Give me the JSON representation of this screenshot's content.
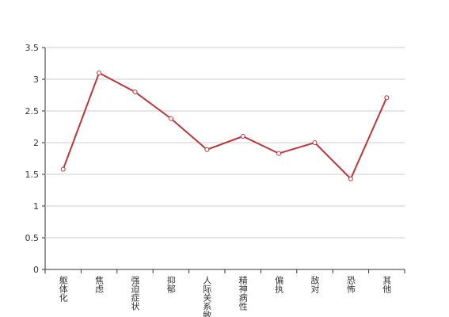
{
  "chart_data": {
    "type": "line",
    "categories": [
      "躯体化",
      "焦虑",
      "强迫症状",
      "抑郁",
      "人际关系敏感",
      "精神病性",
      "偏执",
      "敌对",
      "恐怖",
      "其他"
    ],
    "values": [
      1.58,
      3.1,
      2.8,
      2.38,
      1.89,
      2.1,
      1.83,
      2.0,
      1.43,
      2.71
    ],
    "color": "#c0353a",
    "ylim": [
      0,
      3.5
    ],
    "yticks": [
      0,
      0.5,
      1,
      1.5,
      2,
      2.5,
      3,
      3.5
    ],
    "grid": true
  }
}
